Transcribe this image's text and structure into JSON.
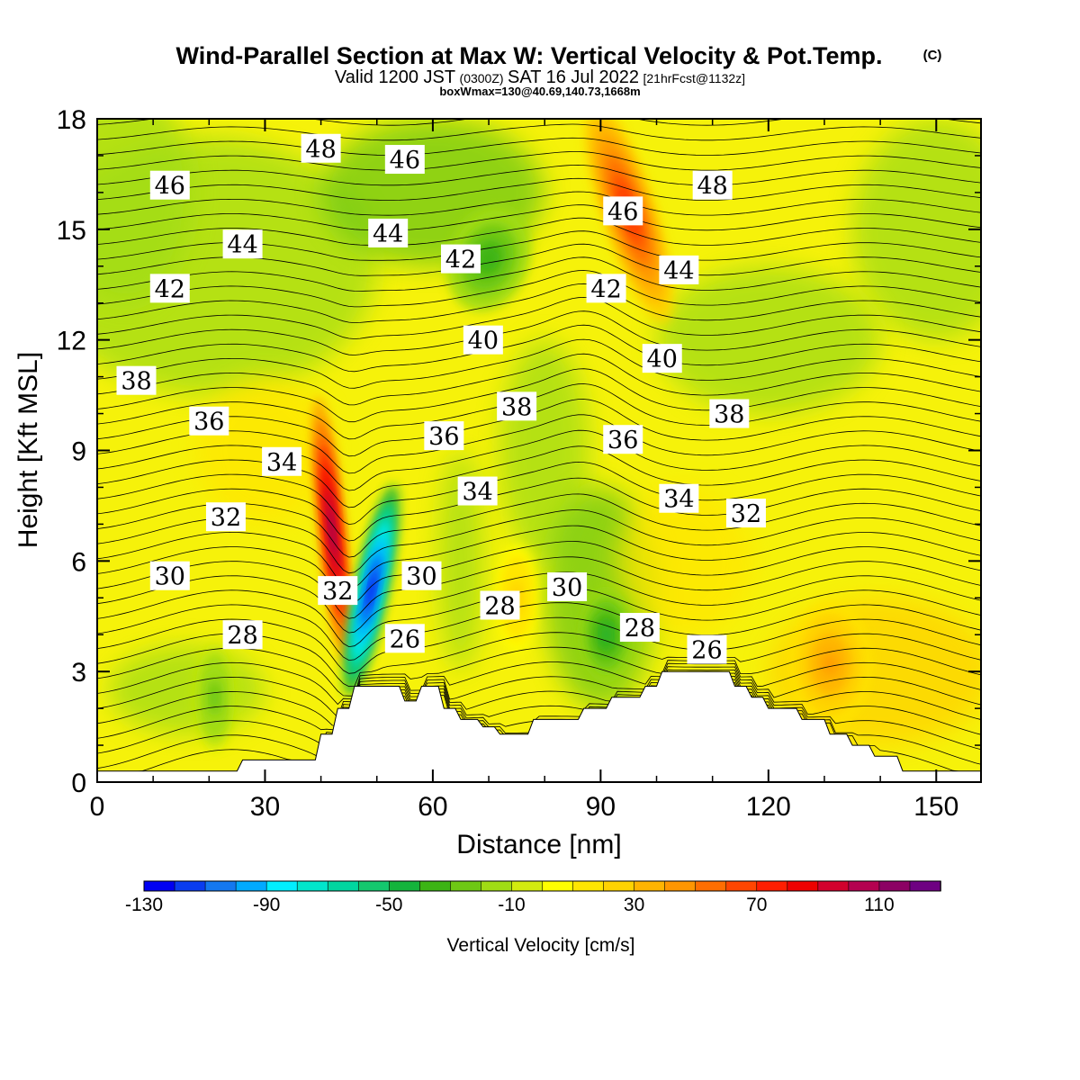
{
  "chart_data": {
    "type": "heatmap",
    "title": "Wind-Parallel Section at Max W: Vertical Velocity & Pot.Temp.",
    "title_mark": "(C)",
    "subtitle_main": "Valid 1200 JST",
    "subtitle_z": "(0300Z)",
    "subtitle_date": "SAT 16 Jul 2022",
    "subtitle_fcst": "[21hrFcst@1132z]",
    "subtitle2": "boxWmax=130@40.69,140.73,1668m",
    "xlabel": "Distance [nm]",
    "ylabel": "Height [Kft MSL]",
    "xlim": [
      0,
      158
    ],
    "ylim": [
      0,
      18
    ],
    "x_ticks": [
      0,
      30,
      60,
      90,
      120,
      150
    ],
    "y_ticks": [
      0,
      3,
      6,
      9,
      12,
      15,
      18
    ],
    "colorbar": {
      "label": "Vertical Velocity [cm/s]",
      "min": -130,
      "max": 130,
      "step": 10,
      "tick_labels": [
        -130,
        -90,
        -50,
        -10,
        30,
        70,
        110
      ],
      "colors": [
        "#0000f2",
        "#0a3cf0",
        "#1478f0",
        "#00aaff",
        "#00eeff",
        "#00e6cc",
        "#00d6a0",
        "#14c86e",
        "#14b43c",
        "#3cb414",
        "#6ec814",
        "#a0dc14",
        "#d2eb0f",
        "#ffff00",
        "#ffe600",
        "#ffd200",
        "#ffb400",
        "#ff9600",
        "#ff6e00",
        "#ff4600",
        "#ff1e00",
        "#ee0000",
        "#d2002d",
        "#b40050",
        "#8c0064",
        "#6e0082"
      ]
    },
    "terrain_kft": [
      [
        0,
        0.3
      ],
      [
        25,
        0.3
      ],
      [
        26,
        0.6
      ],
      [
        39,
        0.6
      ],
      [
        40,
        1.3
      ],
      [
        42,
        1.3
      ],
      [
        43,
        2.0
      ],
      [
        45,
        2.0
      ],
      [
        46,
        2.6
      ],
      [
        54,
        2.6
      ],
      [
        55,
        2.2
      ],
      [
        57,
        2.2
      ],
      [
        58,
        2.6
      ],
      [
        61,
        2.6
      ],
      [
        62,
        2.0
      ],
      [
        64,
        2.0
      ],
      [
        65,
        1.7
      ],
      [
        68,
        1.7
      ],
      [
        69,
        1.5
      ],
      [
        71,
        1.5
      ],
      [
        72,
        1.3
      ],
      [
        77,
        1.3
      ],
      [
        78,
        1.7
      ],
      [
        86,
        1.7
      ],
      [
        87,
        2.0
      ],
      [
        91,
        2.0
      ],
      [
        92,
        2.3
      ],
      [
        97,
        2.3
      ],
      [
        98,
        2.6
      ],
      [
        100,
        2.6
      ],
      [
        101,
        3.0
      ],
      [
        113,
        3.0
      ],
      [
        114,
        2.6
      ],
      [
        116,
        2.6
      ],
      [
        117,
        2.3
      ],
      [
        119,
        2.3
      ],
      [
        120,
        2.0
      ],
      [
        125,
        2.0
      ],
      [
        126,
        1.7
      ],
      [
        130,
        1.7
      ],
      [
        131,
        1.3
      ],
      [
        134,
        1.3
      ],
      [
        135,
        1.0
      ],
      [
        138,
        1.0
      ],
      [
        139,
        0.7
      ],
      [
        143,
        0.7
      ],
      [
        144,
        0.3
      ],
      [
        150,
        0.3
      ],
      [
        158,
        0.3
      ]
    ],
    "vertical_velocity_features": [
      {
        "x": 42,
        "y": 6.8,
        "value": 115
      },
      {
        "x": 49,
        "y": 5.2,
        "value": -130
      },
      {
        "x": 95,
        "y": 15.5,
        "value": 75
      },
      {
        "x": 70,
        "y": 14.2,
        "value": -35
      },
      {
        "x": 91,
        "y": 4.0,
        "value": -45
      },
      {
        "x": 131,
        "y": 3.2,
        "value": 40
      },
      {
        "x": 75,
        "y": 5.0,
        "value": 25
      },
      {
        "x": 21,
        "y": 2.3,
        "value": -25
      }
    ],
    "theta_contour_labels": [
      {
        "value": 48,
        "x": 40,
        "y": 17.2
      },
      {
        "value": 46,
        "x": 55,
        "y": 16.9
      },
      {
        "value": 46,
        "x": 13,
        "y": 16.2
      },
      {
        "value": 48,
        "x": 110,
        "y": 16.2
      },
      {
        "value": 46,
        "x": 94,
        "y": 15.5
      },
      {
        "value": 44,
        "x": 52,
        "y": 14.9
      },
      {
        "value": 44,
        "x": 26,
        "y": 14.6
      },
      {
        "value": 42,
        "x": 65,
        "y": 14.2
      },
      {
        "value": 44,
        "x": 104,
        "y": 13.9
      },
      {
        "value": 42,
        "x": 13,
        "y": 13.4
      },
      {
        "value": 42,
        "x": 91,
        "y": 13.4
      },
      {
        "value": 40,
        "x": 69,
        "y": 12.0
      },
      {
        "value": 40,
        "x": 101,
        "y": 11.5
      },
      {
        "value": 38,
        "x": 7,
        "y": 10.9
      },
      {
        "value": 38,
        "x": 75,
        "y": 10.2
      },
      {
        "value": 38,
        "x": 113,
        "y": 10.0
      },
      {
        "value": 36,
        "x": 20,
        "y": 9.8
      },
      {
        "value": 36,
        "x": 62,
        "y": 9.4
      },
      {
        "value": 36,
        "x": 94,
        "y": 9.3
      },
      {
        "value": 34,
        "x": 33,
        "y": 8.7
      },
      {
        "value": 34,
        "x": 68,
        "y": 7.9
      },
      {
        "value": 34,
        "x": 104,
        "y": 7.7
      },
      {
        "value": 32,
        "x": 23,
        "y": 7.2
      },
      {
        "value": 32,
        "x": 116,
        "y": 7.3
      },
      {
        "value": 32,
        "x": 43,
        "y": 5.2
      },
      {
        "value": 30,
        "x": 13,
        "y": 5.6
      },
      {
        "value": 30,
        "x": 58,
        "y": 5.6
      },
      {
        "value": 30,
        "x": 84,
        "y": 5.3
      },
      {
        "value": 28,
        "x": 72,
        "y": 4.8
      },
      {
        "value": 28,
        "x": 97,
        "y": 4.2
      },
      {
        "value": 28,
        "x": 26,
        "y": 4.0
      },
      {
        "value": 26,
        "x": 55,
        "y": 3.9
      },
      {
        "value": 26,
        "x": 109,
        "y": 3.6
      }
    ]
  }
}
